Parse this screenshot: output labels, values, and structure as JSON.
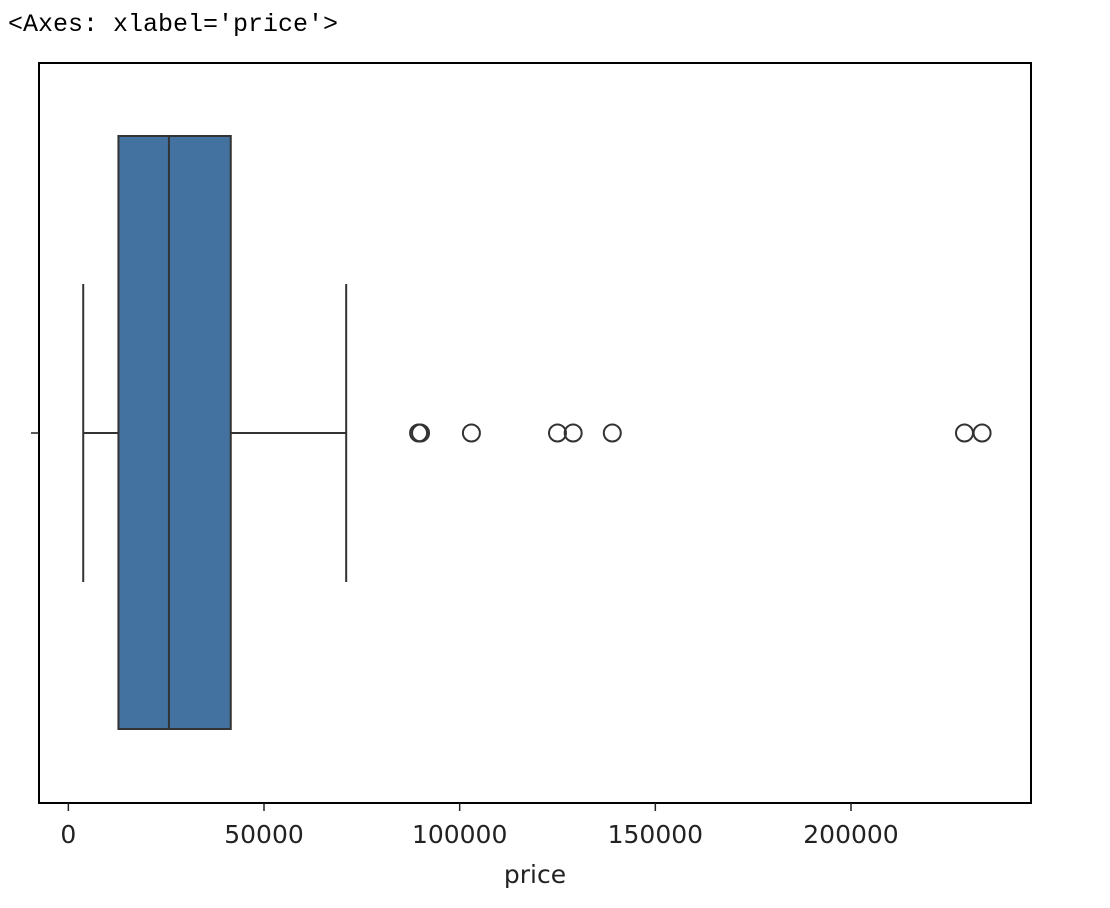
{
  "output_repr": "<Axes: xlabel='price'>",
  "chart_data": {
    "type": "box",
    "orientation": "horizontal",
    "xlabel": "price",
    "ylabel": "",
    "xlim": [
      -7500,
      246000
    ],
    "xticks": [
      0,
      50000,
      100000,
      150000,
      200000
    ],
    "xtick_labels": [
      "0",
      "50000",
      "100000",
      "150000",
      "200000"
    ],
    "box": {
      "whisker_low": 3800,
      "q1": 12800,
      "median": 25700,
      "q3": 41500,
      "whisker_high": 71000,
      "fill_color": "#4472a0",
      "edge_color": "#333333"
    },
    "outliers": [
      89500,
      90000,
      103000,
      125000,
      129000,
      139000,
      229000,
      233500
    ],
    "grid": false
  }
}
